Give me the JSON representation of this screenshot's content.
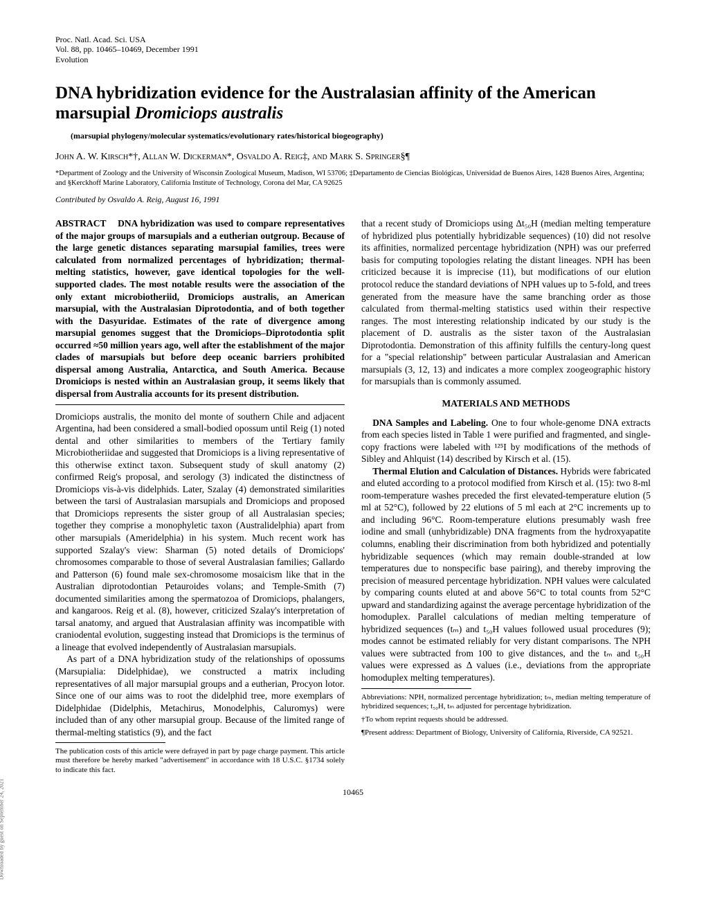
{
  "journal": {
    "line1": "Proc. Natl. Acad. Sci. USA",
    "line2": "Vol. 88, pp. 10465–10469, December 1991",
    "line3": "Evolution"
  },
  "title_plain": "DNA hybridization evidence for the Australasian affinity of the American marsupial ",
  "title_italic": "Dromiciops australis",
  "keywords": "(marsupial phylogeny/molecular systematics/evolutionary rates/historical biogeography)",
  "authors": "John A. W. Kirsch*†, Allan W. Dickerman*, Osvaldo A. Reig‡, and Mark S. Springer§¶",
  "affiliations": "*Department of Zoology and the University of Wisconsin Zoological Museum, Madison, WI 53706; ‡Departamento de Ciencias Biológicas, Universidad de Buenos Aires, 1428 Buenos Aires, Argentina; and §Kerckhoff Marine Laboratory, California Institute of Technology, Corona del Mar, CA 92625",
  "contributed": "Contributed by Osvaldo A. Reig, August 16, 1991",
  "abstract_label": "ABSTRACT",
  "abstract_text": "DNA hybridization was used to compare representatives of the major groups of marsupials and a eutherian outgroup. Because of the large genetic distances separating marsupial families, trees were calculated from normalized percentages of hybridization; thermal-melting statistics, however, gave identical topologies for the well-supported clades. The most notable results were the association of the only extant microbiotheriid, Dromiciops australis, an American marsupial, with the Australasian Diprotodontia, and of both together with the Dasyuridae. Estimates of the rate of divergence among marsupial genomes suggest that the Dromiciops–Diprotodontia split occurred ≈50 million years ago, well after the establishment of the major clades of marsupials but before deep oceanic barriers prohibited dispersal among Australia, Antarctica, and South America. Because Dromiciops is nested within an Australasian group, it seems likely that dispersal from Australia accounts for its present distribution.",
  "intro_p1": "Dromiciops australis, the monito del monte of southern Chile and adjacent Argentina, had been considered a small-bodied opossum until Reig (1) noted dental and other similarities to members of the Tertiary family Microbiotheriidae and suggested that Dromiciops is a living representative of this otherwise extinct taxon. Subsequent study of skull anatomy (2) confirmed Reig's proposal, and serology (3) indicated the distinctness of Dromiciops vis-à-vis didelphids. Later, Szalay (4) demonstrated similarities between the tarsi of Australasian marsupials and Dromiciops and proposed that Dromiciops represents the sister group of all Australasian species; together they comprise a monophyletic taxon (Australidelphia) apart from other marsupials (Ameridelphia) in his system. Much recent work has supported Szalay's view: Sharman (5) noted details of Dromiciops' chromosomes comparable to those of several Australasian families; Gallardo and Patterson (6) found male sex-chromosome mosaicism like that in the Australian diprotodontian Petauroides volans; and Temple-Smith (7) documented similarities among the spermatozoa of Dromiciops, phalangers, and kangaroos. Reig et al. (8), however, criticized Szalay's interpretation of tarsal anatomy, and argued that Australasian affinity was incompatible with craniodental evolution, suggesting instead that Dromiciops is the terminus of a lineage that evolved independently of Australasian marsupials.",
  "intro_p2": "As part of a DNA hybridization study of the relationships of opossums (Marsupialia: Didelphidae), we constructed a matrix including representatives of all major marsupial groups and a eutherian, Procyon lotor. Since one of our aims was to root the didelphid tree, more exemplars of Didelphidae (Didelphis, Metachirus, Monodelphis, Caluromys) were included than of any other marsupial group. Because of the limited range of thermal-melting statistics (9), and the fact",
  "col2_p1": "that a recent study of Dromiciops using Δt₅₀H (median melting temperature of hybridized plus potentially hybridizable sequences) (10) did not resolve its affinities, normalized percentage hybridization (NPH) was our preferred basis for computing topologies relating the distant lineages. NPH has been criticized because it is imprecise (11), but modifications of our elution protocol reduce the standard deviations of NPH values up to 5-fold, and trees generated from the measure have the same branching order as those calculated from thermal-melting statistics used within their respective ranges. The most interesting relationship indicated by our study is the placement of D. australis as the sister taxon of the Australasian Diprotodontia. Demonstration of this affinity fulfills the century-long quest for a \"special relationship\" between particular Australasian and American marsupials (3, 12, 13) and indicates a more complex zoogeographic history for marsupials than is commonly assumed.",
  "methods_head": "MATERIALS AND METHODS",
  "methods_p1_lead": "DNA Samples and Labeling.",
  "methods_p1": " One to four whole-genome DNA extracts from each species listed in Table 1 were purified and fragmented, and single-copy fractions were labeled with ¹²⁵I by modifications of the methods of Sibley and Ahlquist (14) described by Kirsch et al. (15).",
  "methods_p2_lead": "Thermal Elution and Calculation of Distances.",
  "methods_p2": " Hybrids were fabricated and eluted according to a protocol modified from Kirsch et al. (15): two 8-ml room-temperature washes preceded the first elevated-temperature elution (5 ml at 52°C), followed by 22 elutions of 5 ml each at 2°C increments up to and including 96°C. Room-temperature elutions presumably wash free iodine and small (unhybridizable) DNA fragments from the hydroxyapatite columns, enabling their discrimination from both hybridized and potentially hybridizable sequences (which may remain double-stranded at low temperatures due to nonspecific base pairing), and thereby improving the precision of measured percentage hybridization. NPH values were calculated by comparing counts eluted at and above 56°C to total counts from 52°C upward and standardizing against the average percentage hybridization of the homoduplex. Parallel calculations of median melting temperature of hybridized sequences (tₘ) and t₅₀H values followed usual procedures (9); modes cannot be estimated reliably for very distant comparisons. The NPH values were subtracted from 100 to give distances, and the tₘ and t₅₀H values were expressed as Δ values (i.e., deviations from the appropriate homoduplex melting temperatures).",
  "pub_note": "The publication costs of this article were defrayed in part by page charge payment. This article must therefore be hereby marked \"advertisement\" in accordance with 18 U.S.C. §1734 solely to indicate this fact.",
  "abbrev_note": "Abbreviations: NPH, normalized percentage hybridization; tₘ, median melting temperature of hybridized sequences; t₅₀H, tₘ adjusted for percentage hybridization.",
  "reprint_note": "†To whom reprint requests should be addressed.",
  "present_note": "¶Present address: Department of Biology, University of California, Riverside, CA 92521.",
  "page_number": "10465",
  "side_download": "Downloaded by guest on September 24, 2021"
}
